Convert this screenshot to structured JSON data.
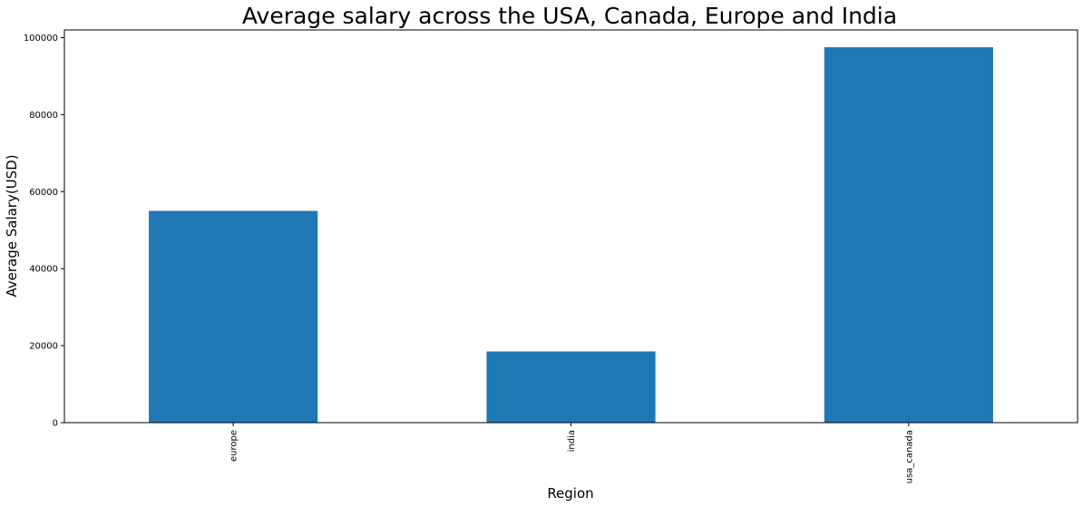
{
  "chart_data": {
    "type": "bar",
    "title": "Average salary across the USA, Canada, Europe and India",
    "xlabel": "Region",
    "ylabel": "Average Salary(USD)",
    "categories": [
      "europe",
      "india",
      "usa_canada"
    ],
    "values": [
      55000,
      18500,
      97500
    ],
    "ylim": [
      0,
      102000
    ],
    "yticks": [
      0,
      20000,
      40000,
      60000,
      80000,
      100000
    ],
    "grid": false,
    "legend": "none",
    "x_tick_rotation": "vertical",
    "bar_color": "#1f77b4"
  }
}
